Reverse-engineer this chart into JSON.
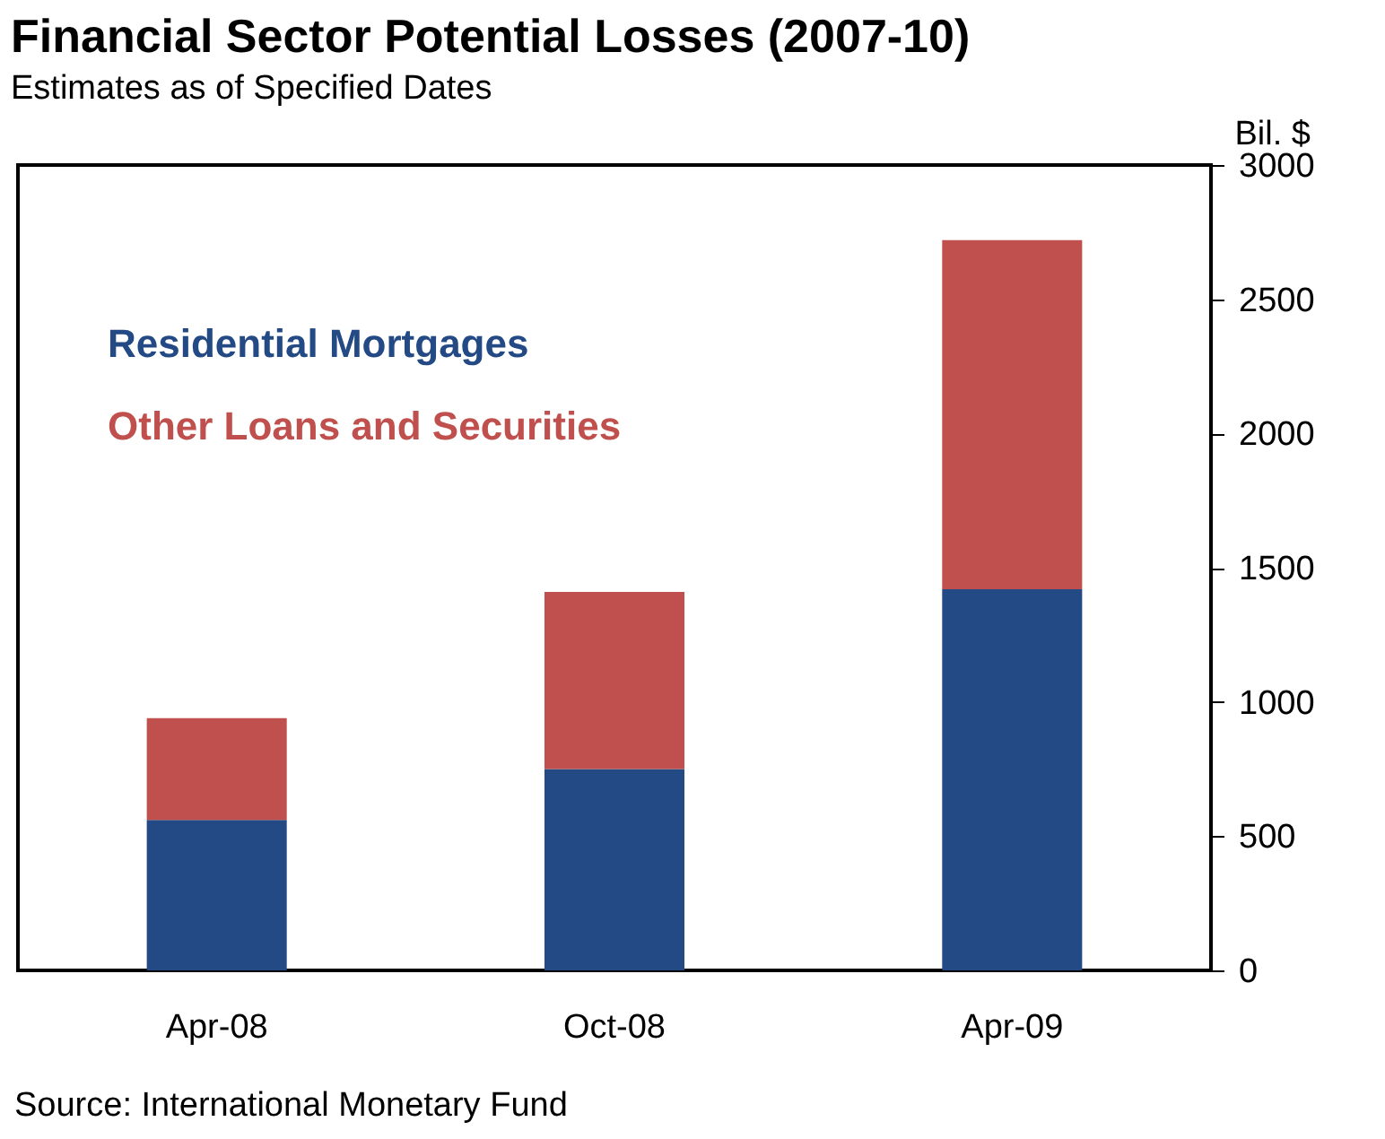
{
  "chart_data": {
    "type": "bar",
    "title": "Financial Sector Potential Losses (2007-10)",
    "subtitle": "Estimates as of Specified Dates",
    "ylabel": "Bil. $",
    "categories": [
      "Apr-08",
      "Oct-08",
      "Apr-09"
    ],
    "stacked": true,
    "series": [
      {
        "name": "Residential Mortgages",
        "color": "#234a84",
        "values": [
          560,
          750,
          1420
        ]
      },
      {
        "name": "Other Loans and Securities",
        "color": "#c0504d",
        "values": [
          380,
          660,
          1300
        ]
      }
    ],
    "ylim": [
      0,
      3000
    ],
    "yticks": [
      0,
      500,
      1000,
      1500,
      2000,
      2500,
      3000
    ],
    "grid": false,
    "legend": "top left",
    "annotations": [
      "Source: International Monetary Fund"
    ]
  }
}
